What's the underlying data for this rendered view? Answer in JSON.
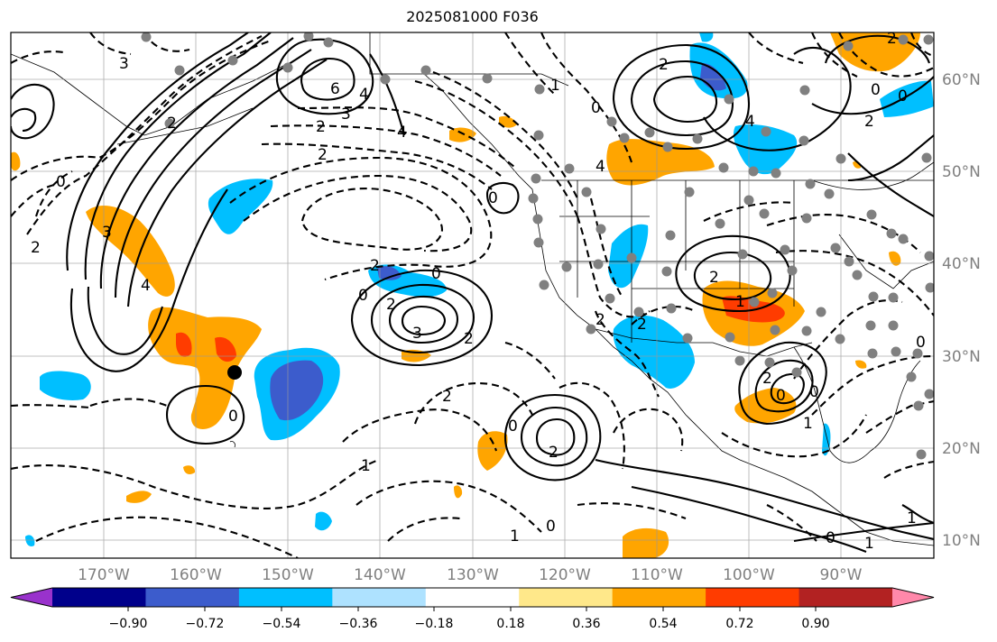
{
  "title": "2025081000 F036",
  "lat_labels": [
    "60°N",
    "50°N",
    "40°N",
    "30°N",
    "20°N",
    "10°N"
  ],
  "lon_labels": [
    "170°W",
    "160°W",
    "150°W",
    "140°W",
    "130°W",
    "120°W",
    "110°W",
    "100°W",
    "90°W"
  ],
  "colorbar": {
    "colors": [
      "#9932cc",
      "#00008b",
      "#3c5ccc",
      "#00bfff",
      "#aee2ff",
      "#ffffff",
      "#ffe88a",
      "#ffa500",
      "#ff3c00",
      "#b22222",
      "#ff88aa"
    ],
    "tick_labels": [
      "−0.90",
      "−0.72",
      "−0.54",
      "−0.36",
      "−0.18",
      "0.18",
      "0.36",
      "0.54",
      "0.72",
      "0.90"
    ]
  },
  "label_color": "#808080",
  "contour_labels": [
    "3",
    "6",
    "4",
    "3",
    "2",
    "4",
    "2",
    "0",
    "2",
    "2",
    "3",
    "2",
    "0",
    "2",
    "0",
    "2",
    "0",
    "4",
    "4",
    "2",
    "2",
    "0",
    "0",
    "2",
    "2",
    "2",
    "0",
    "1",
    "0",
    "1",
    "2",
    "1",
    "2",
    "0",
    "3",
    "4",
    "1",
    "0",
    "0",
    "0",
    "0",
    "1",
    "1",
    "1",
    "2",
    "2",
    "0"
  ]
}
